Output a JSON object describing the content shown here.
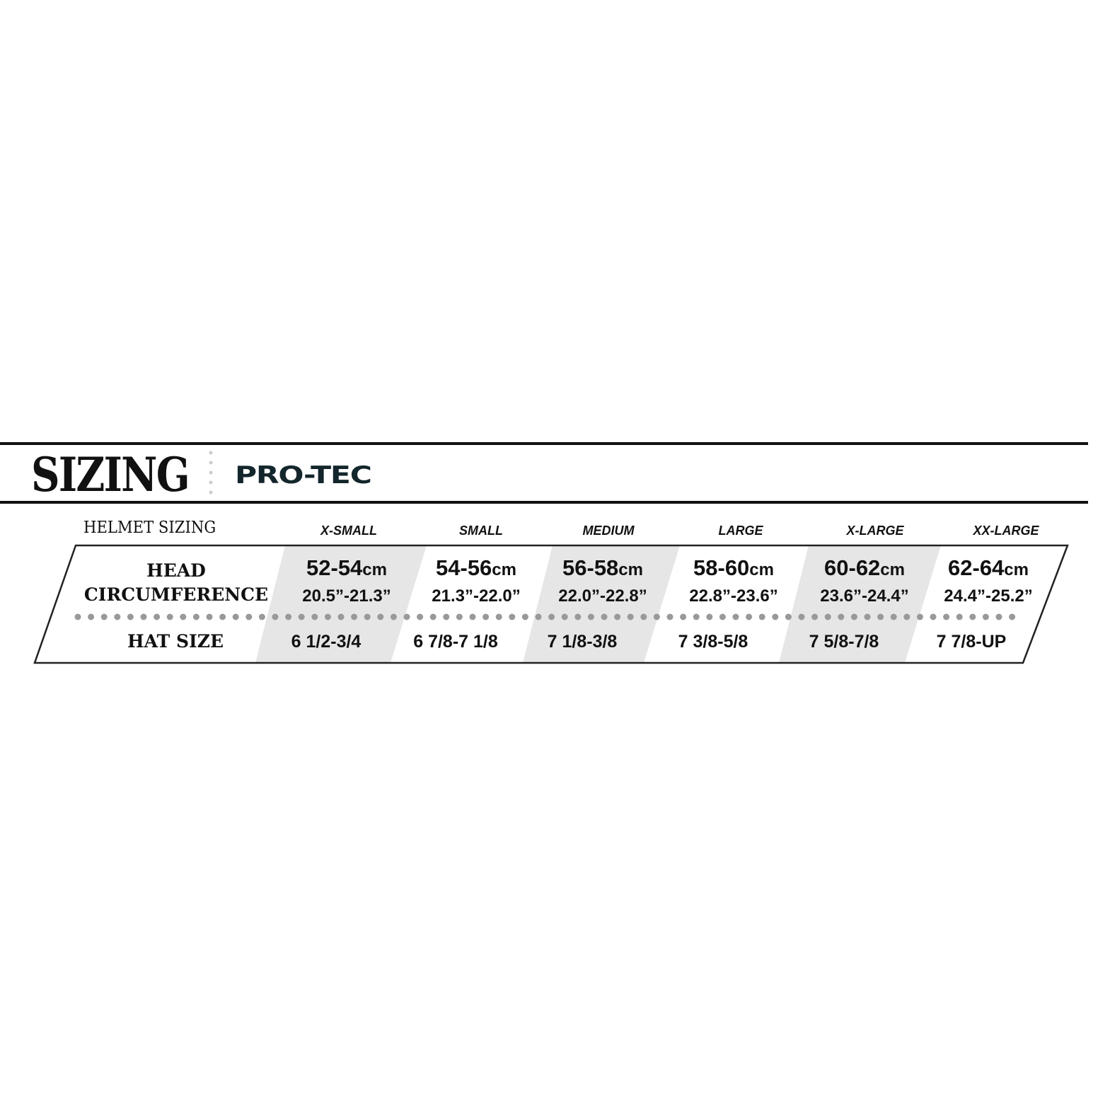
{
  "header": {
    "title": "SIZING",
    "brand": "PRO-TEC"
  },
  "table": {
    "heading": "HELMET SIZING",
    "row_labels": {
      "head_line1": "HEAD",
      "head_line2": "CIRCUMFERENCE",
      "hat": "HAT SIZE"
    },
    "unit": "cm",
    "columns": [
      {
        "size": "X-SMALL",
        "cm": "52-54",
        "inches": "20.5”-21.3”",
        "hat": "6 1/2-3/4",
        "shaded": true
      },
      {
        "size": "SMALL",
        "cm": "54-56",
        "inches": "21.3”-22.0”",
        "hat": "6 7/8-7 1/8",
        "shaded": false
      },
      {
        "size": "MEDIUM",
        "cm": "56-58",
        "inches": "22.0”-22.8”",
        "hat": "7 1/8-3/8",
        "shaded": true
      },
      {
        "size": "LARGE",
        "cm": "58-60",
        "inches": "22.8”-23.6”",
        "hat": "7 3/8-5/8",
        "shaded": false
      },
      {
        "size": "X-LARGE",
        "cm": "60-62",
        "inches": "23.6”-24.4”",
        "hat": "7 5/8-7/8",
        "shaded": true
      },
      {
        "size": "XX-LARGE",
        "cm": "62-64",
        "inches": "24.4”-25.2”",
        "hat": "7 7/8-UP",
        "shaded": false
      }
    ]
  },
  "colors": {
    "shade": "#e6e6e6",
    "dots": "#999999",
    "brand": "#13262c"
  }
}
